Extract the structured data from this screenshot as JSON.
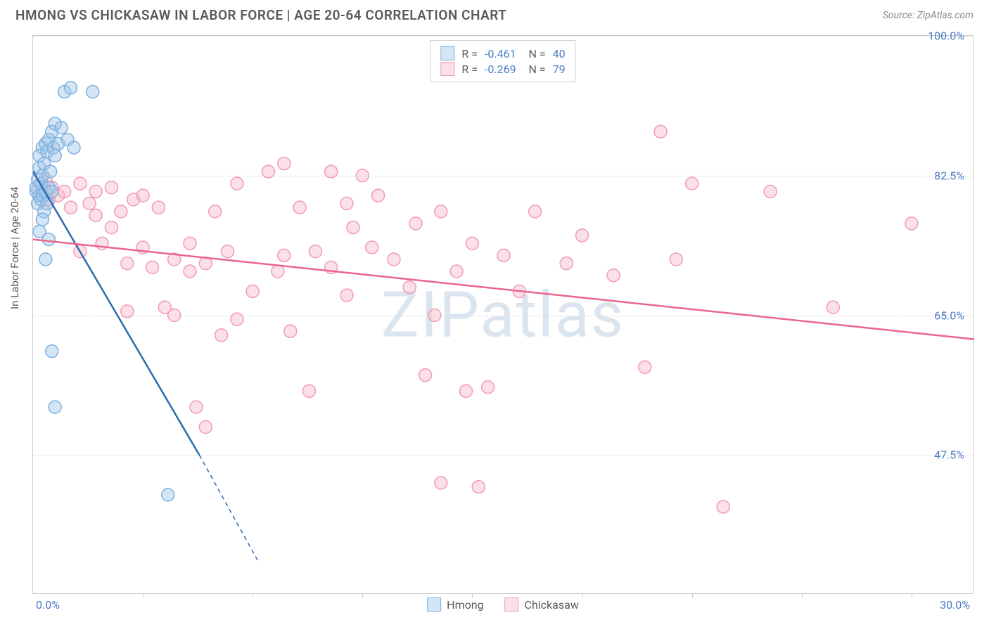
{
  "title": "HMONG VS CHICKASAW IN LABOR FORCE | AGE 20-64 CORRELATION CHART",
  "source": "Source: ZipAtlas.com",
  "watermark": "ZIPatlas",
  "ylabel": "In Labor Force | Age 20-64",
  "chart": {
    "type": "scatter",
    "xlim": [
      0,
      30
    ],
    "ylim": [
      30,
      100
    ],
    "xaxis_min_label": "0.0%",
    "xaxis_max_label": "30.0%",
    "ytick_values": [
      47.5,
      65.0,
      82.5,
      100.0
    ],
    "ytick_labels": [
      "47.5%",
      "65.0%",
      "82.5%",
      "100.0%"
    ],
    "xtick_values": [
      3.5,
      7.0,
      10.5,
      14.0,
      17.5,
      21.0,
      24.5,
      28.0
    ],
    "background_color": "#ffffff",
    "grid_color": "#dddddd",
    "border_color": "#cccccc",
    "label_color": "#4a7bc8",
    "text_color": "#5a5a5a",
    "marker_radius": 9,
    "marker_stroke_width": 1.5,
    "line_width": 2.5
  },
  "series": [
    {
      "name": "Hmong",
      "fill": "rgba(160, 198, 232, 0.45)",
      "stroke": "#7fb0de",
      "line_color": "#2b6cb0",
      "R": "-0.461",
      "N": "40",
      "trend": {
        "x1": 0,
        "y1": 83,
        "x2": 5.3,
        "y2": 47.5,
        "x2_dash": 7.2,
        "y2_dash": 34
      },
      "points": [
        [
          0.1,
          80.5
        ],
        [
          0.1,
          81.0
        ],
        [
          0.15,
          79.0
        ],
        [
          0.15,
          82.0
        ],
        [
          0.2,
          80.0
        ],
        [
          0.2,
          83.5
        ],
        [
          0.2,
          85.0
        ],
        [
          0.25,
          79.5
        ],
        [
          0.25,
          81.5
        ],
        [
          0.3,
          80.0
        ],
        [
          0.3,
          82.5
        ],
        [
          0.3,
          86.0
        ],
        [
          0.35,
          78.0
        ],
        [
          0.35,
          84.0
        ],
        [
          0.4,
          80.5
        ],
        [
          0.4,
          86.5
        ],
        [
          0.45,
          79.0
        ],
        [
          0.45,
          85.5
        ],
        [
          0.5,
          81.0
        ],
        [
          0.5,
          87.0
        ],
        [
          0.55,
          83.0
        ],
        [
          0.6,
          80.5
        ],
        [
          0.6,
          88.0
        ],
        [
          0.65,
          86.0
        ],
        [
          0.7,
          85.0
        ],
        [
          0.7,
          89.0
        ],
        [
          0.8,
          86.5
        ],
        [
          0.9,
          88.5
        ],
        [
          1.0,
          93.0
        ],
        [
          1.1,
          87.0
        ],
        [
          1.2,
          93.5
        ],
        [
          1.3,
          86.0
        ],
        [
          1.9,
          93.0
        ],
        [
          0.5,
          74.5
        ],
        [
          0.4,
          72.0
        ],
        [
          0.6,
          60.5
        ],
        [
          0.7,
          53.5
        ],
        [
          0.3,
          77.0
        ],
        [
          0.2,
          75.5
        ],
        [
          4.3,
          42.5
        ]
      ]
    },
    {
      "name": "Chickasaw",
      "fill": "rgba(248, 187, 204, 0.45)",
      "stroke": "#f19bb4",
      "line_color": "#e9658f",
      "R": "-0.269",
      "N": "79",
      "trend": {
        "x1": 0,
        "y1": 74.5,
        "x2": 30,
        "y2": 62
      },
      "points": [
        [
          0.3,
          80.5
        ],
        [
          0.4,
          82.0
        ],
        [
          0.5,
          79.5
        ],
        [
          0.6,
          81.0
        ],
        [
          0.8,
          80.0
        ],
        [
          1.0,
          80.5
        ],
        [
          1.2,
          78.5
        ],
        [
          1.5,
          81.5
        ],
        [
          1.5,
          73.0
        ],
        [
          1.8,
          79.0
        ],
        [
          2.0,
          80.5
        ],
        [
          2.0,
          77.5
        ],
        [
          2.2,
          74.0
        ],
        [
          2.5,
          81.0
        ],
        [
          2.5,
          76.0
        ],
        [
          2.8,
          78.0
        ],
        [
          3.0,
          71.5
        ],
        [
          3.0,
          65.5
        ],
        [
          3.2,
          79.5
        ],
        [
          3.5,
          80.0
        ],
        [
          3.5,
          73.5
        ],
        [
          3.8,
          71.0
        ],
        [
          4.0,
          78.5
        ],
        [
          4.2,
          66.0
        ],
        [
          4.5,
          72.0
        ],
        [
          4.5,
          65.0
        ],
        [
          5.0,
          70.5
        ],
        [
          5.0,
          74.0
        ],
        [
          5.2,
          53.5
        ],
        [
          5.5,
          51.0
        ],
        [
          5.5,
          71.5
        ],
        [
          5.8,
          78.0
        ],
        [
          6.0,
          62.5
        ],
        [
          6.2,
          73.0
        ],
        [
          6.5,
          64.5
        ],
        [
          6.5,
          81.5
        ],
        [
          7.0,
          68.0
        ],
        [
          7.5,
          83.0
        ],
        [
          7.8,
          70.5
        ],
        [
          8.0,
          84.0
        ],
        [
          8.0,
          72.5
        ],
        [
          8.2,
          63.0
        ],
        [
          8.5,
          78.5
        ],
        [
          8.8,
          55.5
        ],
        [
          9.0,
          73.0
        ],
        [
          9.5,
          71.0
        ],
        [
          9.5,
          83.0
        ],
        [
          10.0,
          67.5
        ],
        [
          10.0,
          79.0
        ],
        [
          10.5,
          82.5
        ],
        [
          10.8,
          73.5
        ],
        [
          11.0,
          80.0
        ],
        [
          11.5,
          72.0
        ],
        [
          12.0,
          68.5
        ],
        [
          12.2,
          76.5
        ],
        [
          12.5,
          57.5
        ],
        [
          12.8,
          65.0
        ],
        [
          13.0,
          78.0
        ],
        [
          13.0,
          44.0
        ],
        [
          13.5,
          70.5
        ],
        [
          13.8,
          55.5
        ],
        [
          14.0,
          74.0
        ],
        [
          14.2,
          43.5
        ],
        [
          14.5,
          56.0
        ],
        [
          15.0,
          72.5
        ],
        [
          15.5,
          68.0
        ],
        [
          16.0,
          78.0
        ],
        [
          17.0,
          71.5
        ],
        [
          17.5,
          75.0
        ],
        [
          18.5,
          70.0
        ],
        [
          19.5,
          58.5
        ],
        [
          20.0,
          88.0
        ],
        [
          20.5,
          72.0
        ],
        [
          21.0,
          81.5
        ],
        [
          22.0,
          41.0
        ],
        [
          23.5,
          80.5
        ],
        [
          25.5,
          66.0
        ],
        [
          28.0,
          76.5
        ],
        [
          10.2,
          76.0
        ]
      ]
    }
  ],
  "legend_top": [
    {
      "series": 0
    },
    {
      "series": 1
    }
  ],
  "legend_bottom": [
    {
      "series": 0
    },
    {
      "series": 1
    }
  ]
}
